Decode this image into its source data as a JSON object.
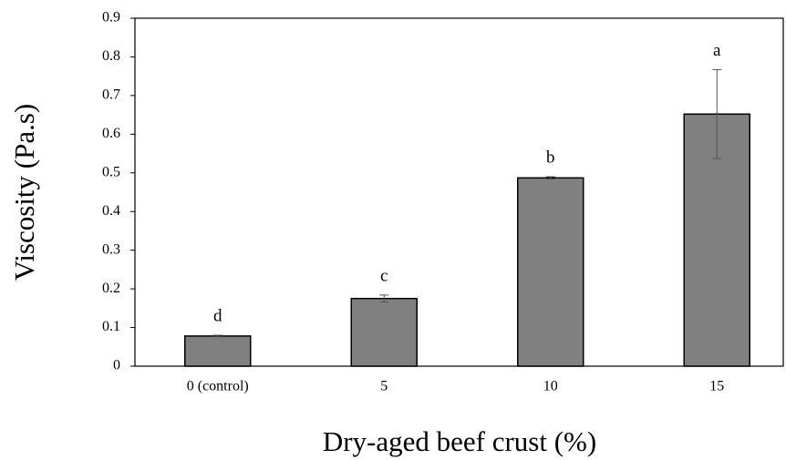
{
  "chart_data": {
    "type": "bar",
    "xlabel": "Dry-aged beef crust (%)",
    "ylabel": "Viscosity (Pa.s)",
    "categories": [
      "0 (control)",
      "5",
      "10",
      "15"
    ],
    "values": [
      0.078,
      0.175,
      0.487,
      0.652
    ],
    "errors": [
      0.002,
      0.009,
      0.003,
      0.115
    ],
    "annotations": [
      "d",
      "c",
      "b",
      "a"
    ],
    "color": "#808080",
    "ylim": [
      0,
      0.9
    ],
    "yticks": [
      0,
      0.1,
      0.2,
      0.3,
      0.4,
      0.5,
      0.6,
      0.7,
      0.8,
      0.9
    ]
  }
}
